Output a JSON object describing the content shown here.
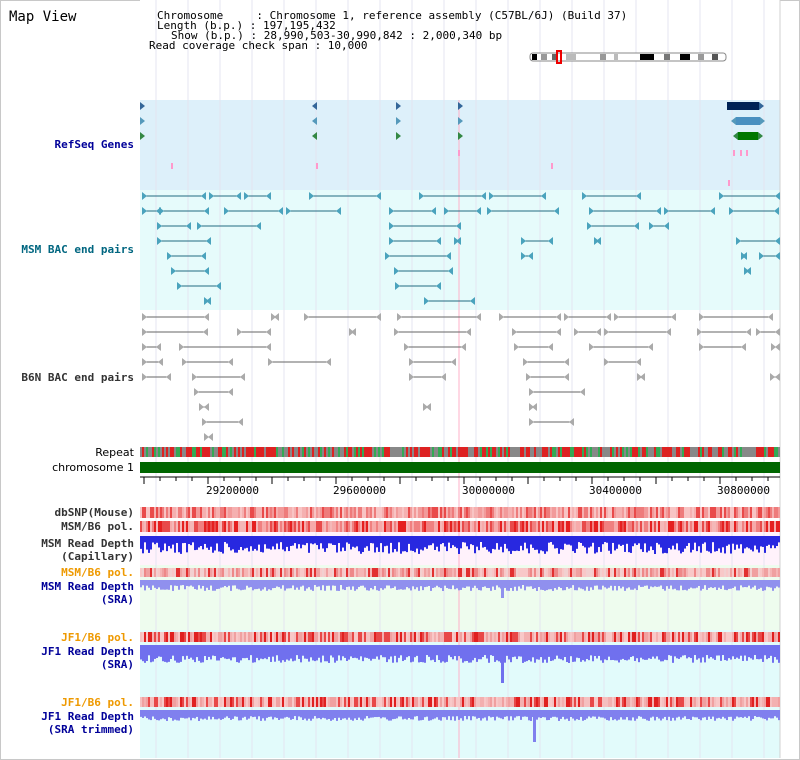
{
  "window_title": "Map View",
  "info": {
    "chromosome_line": "Chromosome     : Chromosome 1, reference assembly (C57BL/6J) (Build 37)",
    "length_line": "Length (b.p.) : 197,195,432",
    "show_line": "Show (b.p.) : 28,990,503-30,990,842 : 2,000,340 bp",
    "span_line": "Read coverage check span : 10,000"
  },
  "tracks": {
    "refseq": "RefSeq Genes",
    "msm_bac": "MSM BAC end pairs",
    "b6n_bac": "B6N BAC end pairs",
    "repeat": "Repeat",
    "chromosome": "chromosome 1",
    "dbsnp": "dbSNP(Mouse)",
    "msm_b6_pol": "MSM/B6 pol.",
    "msm_read_depth_cap_1": "MSM Read Depth",
    "msm_read_depth_cap_2": "(Capillary)",
    "msm_b6_pol_2": "MSM/B6 pol.",
    "msm_read_depth_sra_1": "MSM Read Depth",
    "msm_read_depth_sra_2": "(SRA)",
    "jf1_b6_pol": "JF1/B6 pol.",
    "jf1_read_depth_sra_1": "JF1 Read Depth",
    "jf1_read_depth_sra_2": "(SRA)",
    "jf1_b6_pol_2": "JF1/B6 pol.",
    "jf1_read_depth_trim_1": "JF1 Read Depth",
    "jf1_read_depth_trim_2": "(SRA trimmed)"
  },
  "axis_ticks": [
    "29200000",
    "29600000",
    "30000000",
    "30400000",
    "30800000"
  ],
  "colors": {
    "label_navy": "#000099",
    "label_teal": "#006680",
    "label_gray": "#333333",
    "label_orange": "#ee9900",
    "refseq_bg": "#dff1fb",
    "msm_bg": "#e6fbfb",
    "chromosome_green": "#006600",
    "depth_blue": "#2222dd",
    "pol_red": "#ee2222"
  }
}
